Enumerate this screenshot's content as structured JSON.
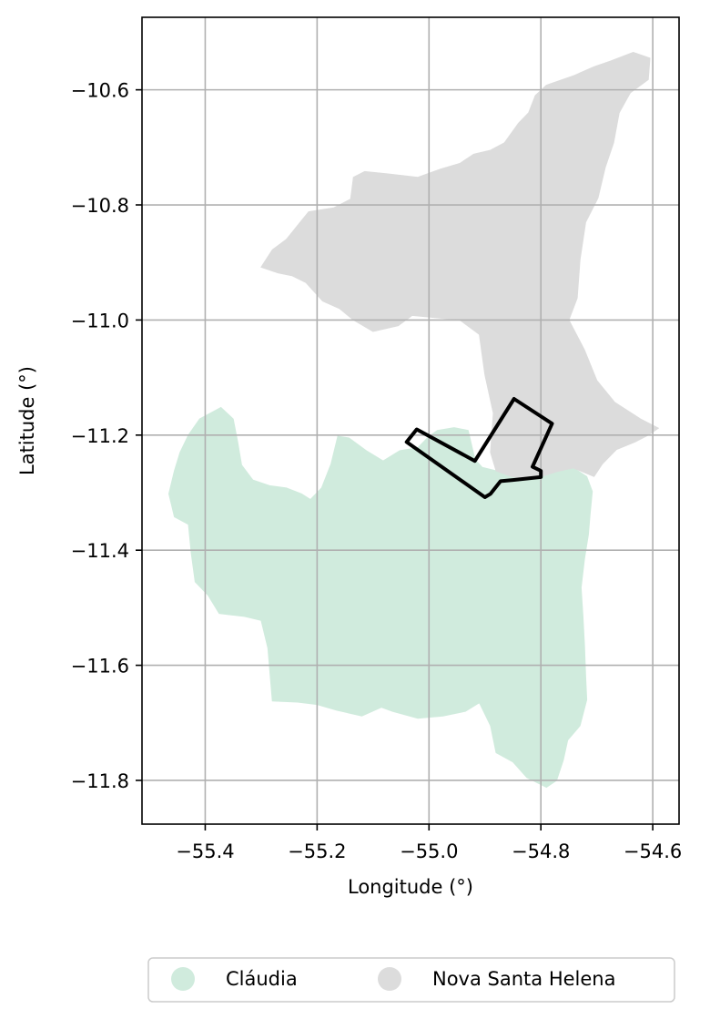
{
  "chart_data": {
    "type": "map",
    "xlabel": "Longitude (°)",
    "ylabel": "Latitude (°)",
    "xlim": [
      -55.513,
      -54.553
    ],
    "ylim": [
      -11.876,
      -10.474
    ],
    "xticks": [
      -55.4,
      -55.2,
      -55.0,
      -54.8,
      -54.6
    ],
    "xtick_labels": [
      "−55.4",
      "−55.2",
      "−55.0",
      "−54.8",
      "−54.6"
    ],
    "yticks": [
      -10.6,
      -10.8,
      -11.0,
      -11.2,
      -11.4,
      -11.6,
      -11.8
    ],
    "ytick_labels": [
      "−10.6",
      "−10.8",
      "−11.0",
      "−11.2",
      "−11.4",
      "−11.6",
      "−11.8"
    ],
    "grid": true,
    "legend_position": "bottom-center",
    "regions": [
      {
        "name": "Cláudia",
        "color": "#d0ebdd",
        "polygon": [
          [
            -55.41,
            -11.172
          ],
          [
            -55.372,
            -11.152
          ],
          [
            -55.35,
            -11.172
          ],
          [
            -55.342,
            -11.212
          ],
          [
            -55.335,
            -11.252
          ],
          [
            -55.315,
            -11.278
          ],
          [
            -55.285,
            -11.288
          ],
          [
            -55.255,
            -11.292
          ],
          [
            -55.228,
            -11.302
          ],
          [
            -55.212,
            -11.312
          ],
          [
            -55.192,
            -11.292
          ],
          [
            -55.175,
            -11.25
          ],
          [
            -55.163,
            -11.202
          ],
          [
            -55.143,
            -11.205
          ],
          [
            -55.112,
            -11.227
          ],
          [
            -55.082,
            -11.245
          ],
          [
            -55.052,
            -11.227
          ],
          [
            -55.02,
            -11.222
          ],
          [
            -55.0,
            -11.202
          ],
          [
            -54.985,
            -11.192
          ],
          [
            -54.955,
            -11.187
          ],
          [
            -54.93,
            -11.192
          ],
          [
            -54.918,
            -11.242
          ],
          [
            -54.905,
            -11.256
          ],
          [
            -54.88,
            -11.262
          ],
          [
            -54.85,
            -11.273
          ],
          [
            -54.81,
            -11.275
          ],
          [
            -54.77,
            -11.263
          ],
          [
            -54.742,
            -11.257
          ],
          [
            -54.718,
            -11.272
          ],
          [
            -54.708,
            -11.298
          ],
          [
            -54.712,
            -11.337
          ],
          [
            -54.715,
            -11.373
          ],
          [
            -54.722,
            -11.415
          ],
          [
            -54.728,
            -11.465
          ],
          [
            -54.725,
            -11.512
          ],
          [
            -54.722,
            -11.565
          ],
          [
            -54.72,
            -11.62
          ],
          [
            -54.718,
            -11.66
          ],
          [
            -54.73,
            -11.705
          ],
          [
            -54.752,
            -11.73
          ],
          [
            -54.76,
            -11.765
          ],
          [
            -54.772,
            -11.8
          ],
          [
            -54.79,
            -11.812
          ],
          [
            -54.825,
            -11.795
          ],
          [
            -54.85,
            -11.768
          ],
          [
            -54.88,
            -11.752
          ],
          [
            -54.89,
            -11.705
          ],
          [
            -54.91,
            -11.665
          ],
          [
            -54.935,
            -11.68
          ],
          [
            -54.975,
            -11.688
          ],
          [
            -55.02,
            -11.692
          ],
          [
            -55.065,
            -11.68
          ],
          [
            -55.085,
            -11.673
          ],
          [
            -55.12,
            -11.688
          ],
          [
            -55.165,
            -11.678
          ],
          [
            -55.2,
            -11.668
          ],
          [
            -55.235,
            -11.664
          ],
          [
            -55.28,
            -11.662
          ],
          [
            -55.288,
            -11.57
          ],
          [
            -55.3,
            -11.522
          ],
          [
            -55.33,
            -11.515
          ],
          [
            -55.375,
            -11.51
          ],
          [
            -55.395,
            -11.478
          ],
          [
            -55.418,
            -11.455
          ],
          [
            -55.425,
            -11.405
          ],
          [
            -55.43,
            -11.355
          ],
          [
            -55.455,
            -11.342
          ],
          [
            -55.465,
            -11.302
          ],
          [
            -55.455,
            -11.262
          ],
          [
            -55.445,
            -11.23
          ],
          [
            -55.43,
            -11.2
          ]
        ]
      },
      {
        "name": "Nova Santa Helena",
        "color": "#dcdcdc",
        "polygon": [
          [
            -54.635,
            -10.535
          ],
          [
            -54.605,
            -10.545
          ],
          [
            -54.608,
            -10.582
          ],
          [
            -54.64,
            -10.605
          ],
          [
            -54.66,
            -10.64
          ],
          [
            -54.67,
            -10.692
          ],
          [
            -54.685,
            -10.735
          ],
          [
            -54.698,
            -10.788
          ],
          [
            -54.72,
            -10.83
          ],
          [
            -54.73,
            -10.895
          ],
          [
            -54.735,
            -10.962
          ],
          [
            -54.75,
            -11.0
          ],
          [
            -54.722,
            -11.052
          ],
          [
            -54.7,
            -11.105
          ],
          [
            -54.668,
            -11.143
          ],
          [
            -54.622,
            -11.172
          ],
          [
            -54.59,
            -11.188
          ],
          [
            -54.608,
            -11.2
          ],
          [
            -54.632,
            -11.212
          ],
          [
            -54.665,
            -11.225
          ],
          [
            -54.69,
            -11.25
          ],
          [
            -54.705,
            -11.272
          ],
          [
            -54.742,
            -11.257
          ],
          [
            -54.77,
            -11.263
          ],
          [
            -54.81,
            -11.275
          ],
          [
            -54.85,
            -11.273
          ],
          [
            -54.88,
            -11.262
          ],
          [
            -54.89,
            -11.23
          ],
          [
            -54.885,
            -11.162
          ],
          [
            -54.9,
            -11.095
          ],
          [
            -54.91,
            -11.025
          ],
          [
            -54.945,
            -11.0
          ],
          [
            -55.03,
            -10.992
          ],
          [
            -55.055,
            -11.01
          ],
          [
            -55.1,
            -11.02
          ],
          [
            -55.135,
            -11.0
          ],
          [
            -55.16,
            -10.98
          ],
          [
            -55.19,
            -10.967
          ],
          [
            -55.22,
            -10.935
          ],
          [
            -55.245,
            -10.923
          ],
          [
            -55.27,
            -10.918
          ],
          [
            -55.3,
            -10.908
          ],
          [
            -55.28,
            -10.878
          ],
          [
            -55.255,
            -10.86
          ],
          [
            -55.23,
            -10.83
          ],
          [
            -55.215,
            -10.812
          ],
          [
            -55.17,
            -10.805
          ],
          [
            -55.14,
            -10.79
          ],
          [
            -55.135,
            -10.752
          ],
          [
            -55.115,
            -10.742
          ],
          [
            -55.075,
            -10.746
          ],
          [
            -55.02,
            -10.752
          ],
          [
            -54.98,
            -10.738
          ],
          [
            -54.945,
            -10.728
          ],
          [
            -54.92,
            -10.712
          ],
          [
            -54.89,
            -10.705
          ],
          [
            -54.865,
            -10.692
          ],
          [
            -54.84,
            -10.658
          ],
          [
            -54.822,
            -10.64
          ],
          [
            -54.81,
            -10.61
          ],
          [
            -54.79,
            -10.592
          ],
          [
            -54.74,
            -10.575
          ],
          [
            -54.705,
            -10.56
          ],
          [
            -54.675,
            -10.55
          ]
        ]
      }
    ],
    "boundary": {
      "stroke": "#000000",
      "polygon": [
        [
          -55.04,
          -11.212
        ],
        [
          -55.022,
          -11.19
        ],
        [
          -54.918,
          -11.245
        ],
        [
          -54.848,
          -11.137
        ],
        [
          -54.78,
          -11.18
        ],
        [
          -54.815,
          -11.255
        ],
        [
          -54.8,
          -11.262
        ],
        [
          -54.8,
          -11.273
        ],
        [
          -54.85,
          -11.278
        ],
        [
          -54.872,
          -11.28
        ],
        [
          -54.89,
          -11.302
        ],
        [
          -54.9,
          -11.308
        ]
      ]
    },
    "legend": [
      {
        "label": "Cláudia",
        "color": "#d0ebdd"
      },
      {
        "label": "Nova Santa Helena",
        "color": "#dcdcdc"
      }
    ]
  }
}
